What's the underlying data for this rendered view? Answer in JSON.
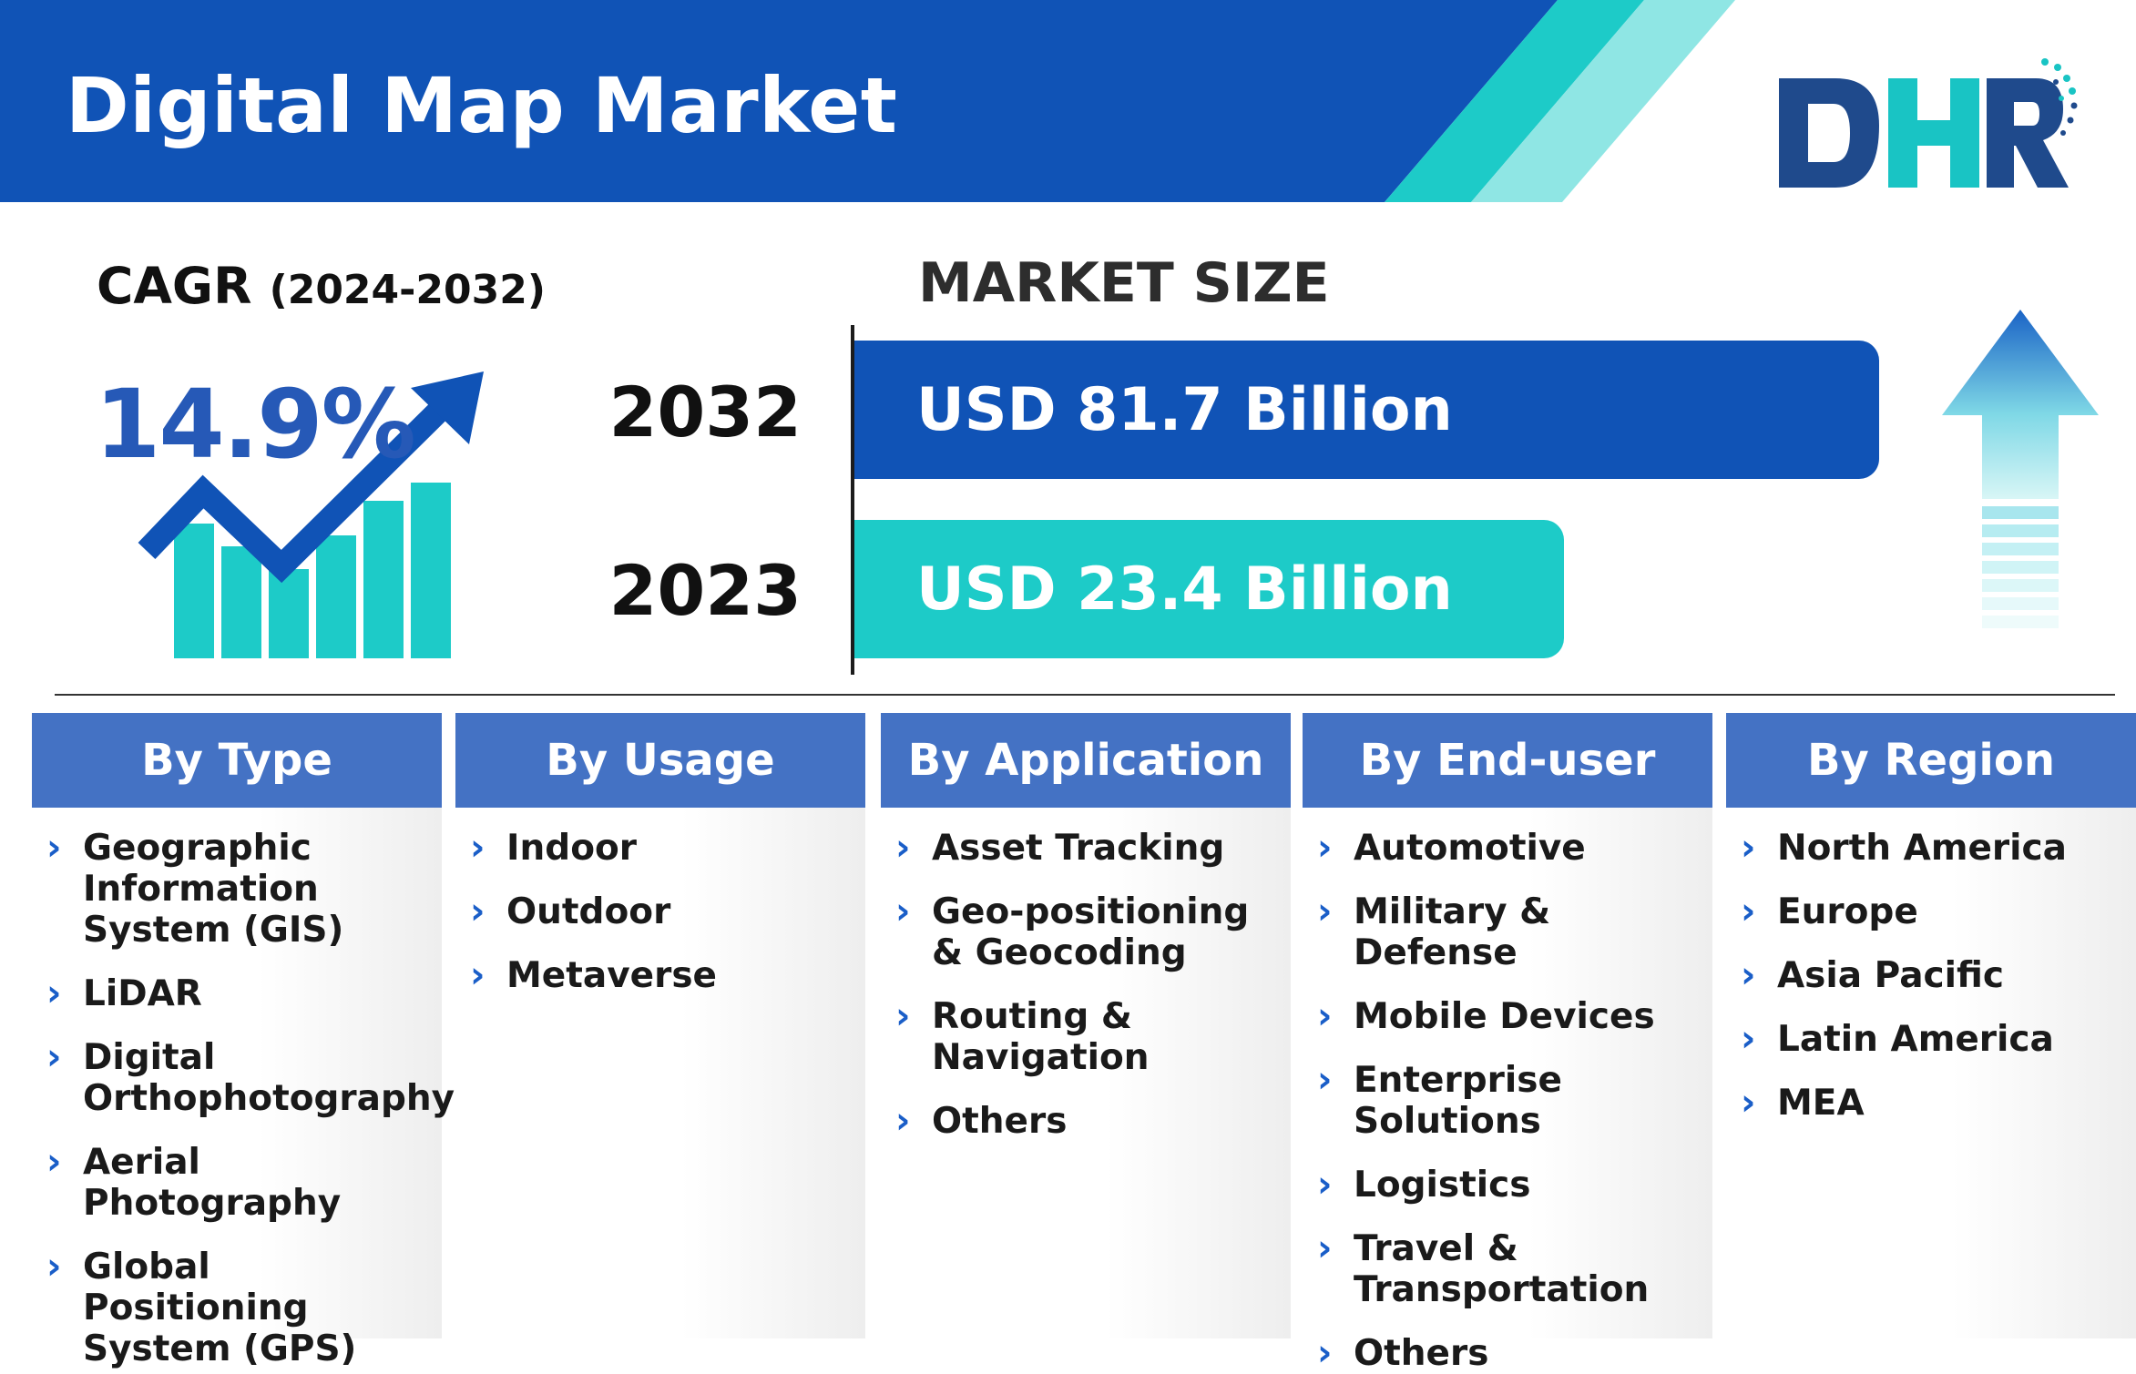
{
  "header": {
    "title": "Digital Map Market",
    "logo_text": "DHR",
    "colors": {
      "blue": "#1053b6",
      "teal": "#1dcbc8",
      "light_teal": "#8fe6e4"
    }
  },
  "cagr": {
    "label": "CAGR",
    "period": "(2024-2032)",
    "value": "14.9%",
    "icon": "growth-chart-icon"
  },
  "market_size": {
    "label": "MARKET SIZE",
    "bars": [
      {
        "year": "2032",
        "value_text": "USD 81.7 Billion",
        "value": 81.7,
        "color": "#1053b6"
      },
      {
        "year": "2023",
        "value_text": "USD 23.4 Billion",
        "value": 23.4,
        "color": "#1dcbc8"
      }
    ],
    "icon": "up-arrow-icon"
  },
  "segments": [
    {
      "title": "By Type",
      "items": [
        "Geographic\nInformation\nSystem (GIS)",
        "LiDAR",
        "Digital\nOrthophotography",
        "Aerial Photography",
        "Global Positioning\nSystem (GPS)"
      ]
    },
    {
      "title": "By Usage",
      "items": [
        "Indoor",
        "Outdoor",
        "Metaverse"
      ]
    },
    {
      "title": "By Application",
      "items": [
        "Asset Tracking",
        "Geo-positioning\n& Geocoding",
        "Routing &\nNavigation",
        "Others"
      ]
    },
    {
      "title": "By End-user",
      "items": [
        "Automotive",
        "Military & Defense",
        "Mobile Devices",
        "Enterprise Solutions",
        "Logistics",
        "Travel &\nTransportation",
        "Others"
      ]
    },
    {
      "title": "By Region",
      "items": [
        "North America",
        "Europe",
        "Asia Pacific",
        "Latin America",
        "MEA"
      ]
    }
  ]
}
